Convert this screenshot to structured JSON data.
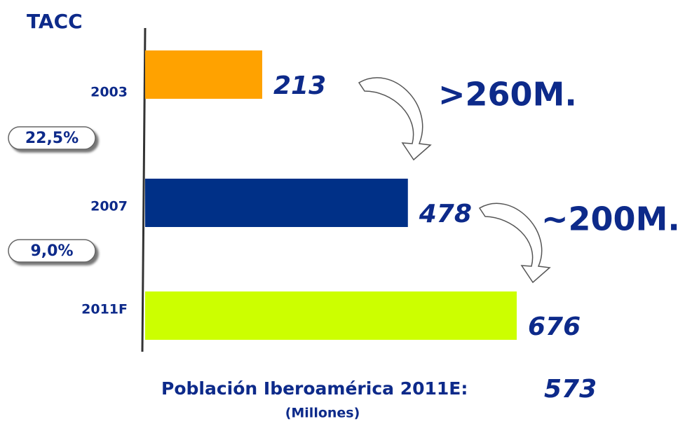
{
  "chart_data": {
    "type": "bar",
    "orientation": "horizontal",
    "title": "TACC",
    "categories": [
      "2003",
      "2007",
      "2011F"
    ],
    "values": [
      213,
      478,
      676
    ],
    "colors": [
      "#ffa200",
      "#003087",
      "#ccff00"
    ],
    "annotations": {
      "growth_rates": [
        "22,5%",
        "9,0%"
      ],
      "increments": [
        ">260M.",
        "~200M."
      ]
    },
    "footer": {
      "label": "Población Iberoamérica 2011E:",
      "value": 573,
      "unit": "(Millones)"
    }
  }
}
